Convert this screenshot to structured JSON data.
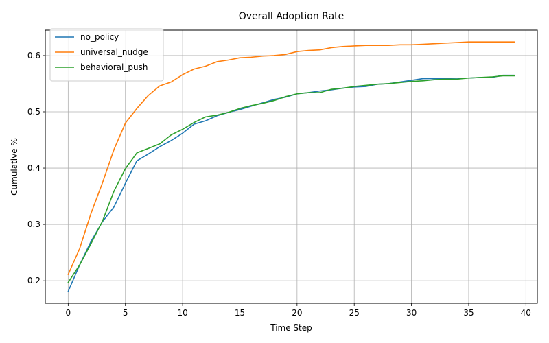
{
  "chart_data": {
    "type": "line",
    "title": "Overall Adoption Rate",
    "xlabel": "Time Step",
    "ylabel": "Cumulative %",
    "xlim": [
      -2,
      41
    ],
    "ylim": [
      0.16,
      0.645
    ],
    "xticks": [
      0,
      5,
      10,
      15,
      20,
      25,
      30,
      35,
      40
    ],
    "yticks": [
      0.2,
      0.3,
      0.4,
      0.5,
      0.6
    ],
    "xtick_labels": [
      "0",
      "5",
      "10",
      "15",
      "20",
      "25",
      "30",
      "35",
      "40"
    ],
    "ytick_labels": [
      "0.2",
      "0.3",
      "0.4",
      "0.5",
      "0.6"
    ],
    "grid": true,
    "legend_position": "upper left",
    "x": [
      0,
      1,
      2,
      3,
      4,
      5,
      6,
      7,
      8,
      9,
      10,
      11,
      12,
      13,
      14,
      15,
      16,
      17,
      18,
      19,
      20,
      21,
      22,
      23,
      24,
      25,
      26,
      27,
      28,
      29,
      30,
      31,
      32,
      33,
      34,
      35,
      36,
      37,
      38,
      39
    ],
    "series": [
      {
        "name": "no_policy",
        "color": "#1f77b4",
        "values": [
          0.181,
          0.228,
          0.27,
          0.305,
          0.331,
          0.373,
          0.413,
          0.425,
          0.438,
          0.449,
          0.462,
          0.478,
          0.484,
          0.493,
          0.499,
          0.504,
          0.51,
          0.516,
          0.522,
          0.526,
          0.532,
          0.534,
          0.537,
          0.539,
          0.542,
          0.544,
          0.545,
          0.549,
          0.55,
          0.553,
          0.556,
          0.559,
          0.559,
          0.559,
          0.56,
          0.56,
          0.561,
          0.561,
          0.565,
          0.565
        ]
      },
      {
        "name": "universal_nudge",
        "color": "#ff7f0e",
        "values": [
          0.211,
          0.257,
          0.32,
          0.374,
          0.433,
          0.48,
          0.506,
          0.529,
          0.546,
          0.553,
          0.566,
          0.576,
          0.581,
          0.589,
          0.592,
          0.596,
          0.597,
          0.599,
          0.6,
          0.602,
          0.607,
          0.609,
          0.61,
          0.614,
          0.616,
          0.617,
          0.618,
          0.618,
          0.618,
          0.619,
          0.619,
          0.62,
          0.621,
          0.622,
          0.623,
          0.624,
          0.624,
          0.624,
          0.624,
          0.624
        ]
      },
      {
        "name": "behavioral_push",
        "color": "#2ca02c",
        "values": [
          0.197,
          0.228,
          0.266,
          0.306,
          0.359,
          0.399,
          0.427,
          0.435,
          0.443,
          0.459,
          0.469,
          0.481,
          0.491,
          0.494,
          0.499,
          0.506,
          0.511,
          0.515,
          0.52,
          0.527,
          0.532,
          0.534,
          0.534,
          0.54,
          0.542,
          0.545,
          0.547,
          0.549,
          0.55,
          0.552,
          0.554,
          0.555,
          0.557,
          0.558,
          0.558,
          0.56,
          0.561,
          0.562,
          0.564,
          0.564
        ]
      }
    ]
  }
}
